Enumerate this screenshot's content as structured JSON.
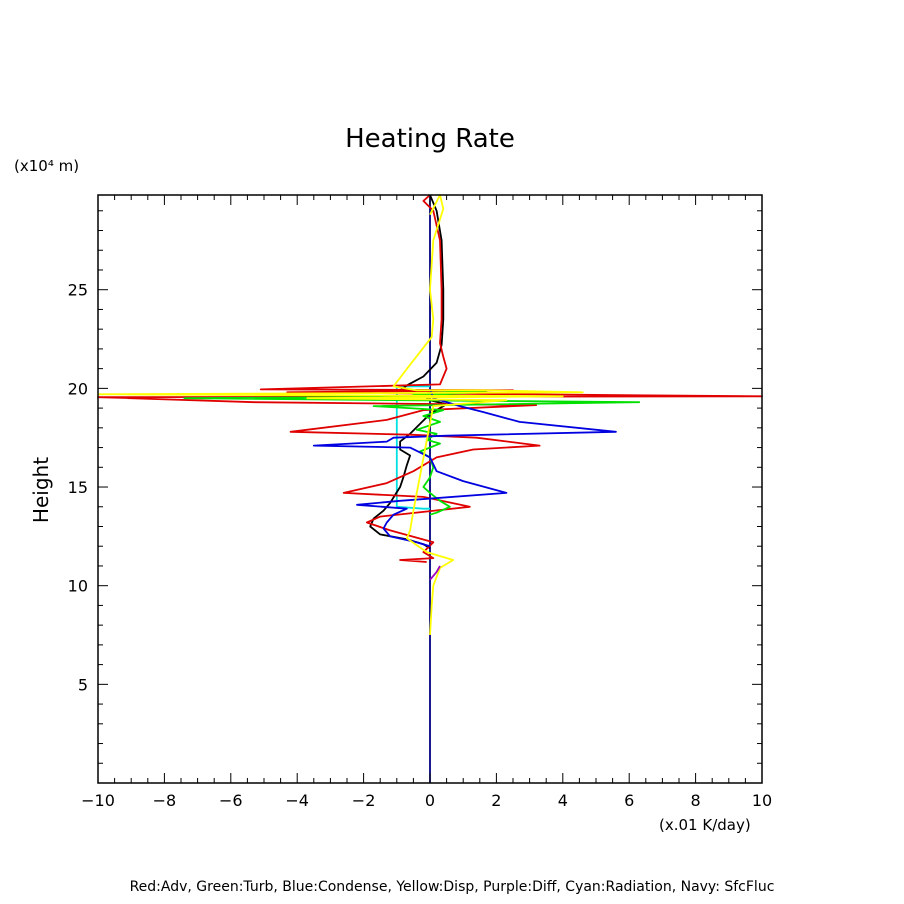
{
  "chart_data": {
    "type": "line",
    "title": "Heating Rate",
    "ylabel": "Height",
    "yunit": "(x10⁴ m)",
    "xunit": "(x.01 K/day)",
    "caption": "Red:Adv, Green:Turb, Blue:Condense, Yellow:Disp, Purple:Diff, Cyan:Radiation, Navy: SfcFluc",
    "xlim": [
      -10,
      10
    ],
    "ylim": [
      0,
      29.8
    ],
    "xticks": [
      -10,
      -8,
      -6,
      -4,
      -2,
      0,
      2,
      4,
      6,
      8,
      10
    ],
    "xtick_labels": [
      "−10",
      "−8",
      "−6",
      "−4",
      "−2",
      "0",
      "2",
      "4",
      "6",
      "8",
      "10"
    ],
    "yticks": [
      5,
      10,
      15,
      20,
      25
    ],
    "ytick_labels": [
      "5",
      "10",
      "15",
      "20",
      "25"
    ],
    "grid": false,
    "series": [
      {
        "key": "navy",
        "color": "#000080",
        "points": [
          [
            0,
            0
          ],
          [
            0,
            29.8
          ]
        ]
      },
      {
        "key": "cyan",
        "color": "#00e0e0",
        "points": [
          [
            0,
            20.1
          ],
          [
            -1,
            20.1
          ],
          [
            -1,
            14.0
          ],
          [
            -0.2,
            13.9
          ],
          [
            0,
            13.9
          ]
        ]
      },
      {
        "key": "black",
        "color": "#000000",
        "points": [
          [
            0,
            29.8
          ],
          [
            0.2,
            29.0
          ],
          [
            0.35,
            27.5
          ],
          [
            0.4,
            25
          ],
          [
            0.4,
            23.5
          ],
          [
            0.35,
            22.2
          ],
          [
            0.2,
            21.3
          ],
          [
            -0.2,
            20.6
          ],
          [
            -0.7,
            20.15
          ],
          [
            -0.9,
            19.9
          ],
          [
            0,
            19.9
          ],
          [
            -0.15,
            19.6
          ],
          [
            0,
            19.4
          ],
          [
            0.5,
            19.2
          ],
          [
            0,
            18.7
          ],
          [
            -0.3,
            18.2
          ],
          [
            -0.6,
            17.7
          ],
          [
            -0.9,
            17.3
          ],
          [
            -0.9,
            16.9
          ],
          [
            -0.6,
            16.6
          ],
          [
            -0.7,
            16.1
          ],
          [
            -0.8,
            15.5
          ],
          [
            -0.9,
            15.0
          ],
          [
            -1.05,
            14.6
          ],
          [
            -1.2,
            14.2
          ],
          [
            -1.4,
            13.8
          ],
          [
            -1.7,
            13.4
          ],
          [
            -1.8,
            13.0
          ],
          [
            -1.5,
            12.6
          ],
          [
            -0.7,
            12.35
          ],
          [
            -0.2,
            12.1
          ],
          [
            0,
            11.9
          ]
        ]
      },
      {
        "key": "red",
        "color": "#e00000",
        "points": [
          [
            0,
            29.8
          ],
          [
            -0.2,
            29.5
          ],
          [
            0.1,
            29.0
          ],
          [
            0.3,
            27.5
          ],
          [
            0.35,
            25
          ],
          [
            0.35,
            23.5
          ],
          [
            0.3,
            22.3
          ],
          [
            0.4,
            21.6
          ],
          [
            0.5,
            21.0
          ],
          [
            0.3,
            20.2
          ],
          [
            -5.1,
            19.95
          ],
          [
            2.5,
            19.9
          ],
          [
            -4.3,
            19.8
          ],
          [
            10,
            19.6
          ],
          [
            -10,
            19.55
          ],
          [
            -5.3,
            19.3
          ],
          [
            3.2,
            19.15
          ],
          [
            -0.2,
            18.9
          ],
          [
            -1.3,
            18.4
          ],
          [
            -4.2,
            17.8
          ],
          [
            -0.6,
            17.65
          ],
          [
            1.4,
            17.5
          ],
          [
            3.3,
            17.1
          ],
          [
            1.3,
            16.9
          ],
          [
            0.2,
            16.5
          ],
          [
            -0.5,
            15.8
          ],
          [
            -1.3,
            15.2
          ],
          [
            -2.6,
            14.7
          ],
          [
            -0.2,
            14.5
          ],
          [
            1.2,
            14.0
          ],
          [
            -1.5,
            13.5
          ],
          [
            -1.9,
            13.2
          ],
          [
            -1.2,
            12.8
          ],
          [
            0.1,
            12.2
          ],
          [
            -0.2,
            11.7
          ],
          [
            0.1,
            11.4
          ],
          [
            -0.9,
            11.3
          ],
          [
            -0.1,
            11.2
          ]
        ]
      },
      {
        "key": "green",
        "color": "#00e000",
        "points": [
          [
            0,
            19.9
          ],
          [
            1.7,
            19.8
          ],
          [
            -0.5,
            19.7
          ],
          [
            1.5,
            19.6
          ],
          [
            -7.4,
            19.5
          ],
          [
            6.3,
            19.3
          ],
          [
            -1.7,
            19.1
          ],
          [
            0.4,
            18.9
          ],
          [
            -0.2,
            18.6
          ],
          [
            0.3,
            18.3
          ],
          [
            -0.4,
            17.9
          ],
          [
            0.2,
            17.7
          ],
          [
            -0.1,
            17.4
          ],
          [
            0.3,
            17.2
          ],
          [
            -0.3,
            16.8
          ],
          [
            0,
            16.5
          ],
          [
            0.1,
            16.0
          ],
          [
            0,
            15.5
          ],
          [
            -0.2,
            15.0
          ],
          [
            0,
            14.7
          ],
          [
            0.3,
            14.3
          ],
          [
            0.6,
            14.0
          ],
          [
            0.2,
            13.7
          ],
          [
            0,
            13.6
          ]
        ]
      },
      {
        "key": "blue",
        "color": "#0000e0",
        "points": [
          [
            0,
            20.0
          ],
          [
            0.1,
            19.5
          ],
          [
            0.9,
            19.1
          ],
          [
            1.6,
            18.8
          ],
          [
            2.7,
            18.3
          ],
          [
            5.6,
            17.8
          ],
          [
            0.5,
            17.6
          ],
          [
            -1.1,
            17.5
          ],
          [
            -1.3,
            17.3
          ],
          [
            -3.5,
            17.1
          ],
          [
            -0.6,
            17.0
          ],
          [
            0,
            16.5
          ],
          [
            0.2,
            15.8
          ],
          [
            1.0,
            15.3
          ],
          [
            2.3,
            14.7
          ],
          [
            -0.9,
            14.3
          ],
          [
            -2.2,
            14.1
          ],
          [
            -0.7,
            13.9
          ],
          [
            -1.1,
            13.6
          ],
          [
            -1.3,
            13.2
          ],
          [
            -1.4,
            12.9
          ],
          [
            -1.2,
            12.5
          ],
          [
            -0.4,
            12.2
          ],
          [
            0,
            12.0
          ]
        ]
      },
      {
        "key": "yellow",
        "color": "#ffff00",
        "points": [
          [
            0,
            28.8
          ],
          [
            0.3,
            29.8
          ],
          [
            0.4,
            29.1
          ],
          [
            0.1,
            27.5
          ],
          [
            0,
            25
          ],
          [
            0.1,
            23.5
          ],
          [
            0.05,
            22.6
          ],
          [
            -0.6,
            21.2
          ],
          [
            -1.1,
            20.1
          ],
          [
            -0.4,
            19.9
          ],
          [
            1.6,
            19.9
          ],
          [
            4.6,
            19.8
          ],
          [
            -10,
            19.7
          ],
          [
            4.0,
            19.6
          ],
          [
            -3.7,
            19.5
          ],
          [
            2.3,
            19.4
          ],
          [
            0.1,
            19.1
          ],
          [
            -0.5,
            13.8
          ],
          [
            -0.6,
            12.8
          ],
          [
            -0.7,
            12.4
          ],
          [
            -0.1,
            11.7
          ],
          [
            0.7,
            11.3
          ],
          [
            0.3,
            10.9
          ],
          [
            0.1,
            10.0
          ],
          [
            0.05,
            9.0
          ],
          [
            0,
            7.5
          ]
        ]
      },
      {
        "key": "purple",
        "color": "#a000c0",
        "points": [
          [
            0,
            10.3
          ],
          [
            0.2,
            10.7
          ],
          [
            0.3,
            11.0
          ]
        ]
      }
    ]
  }
}
